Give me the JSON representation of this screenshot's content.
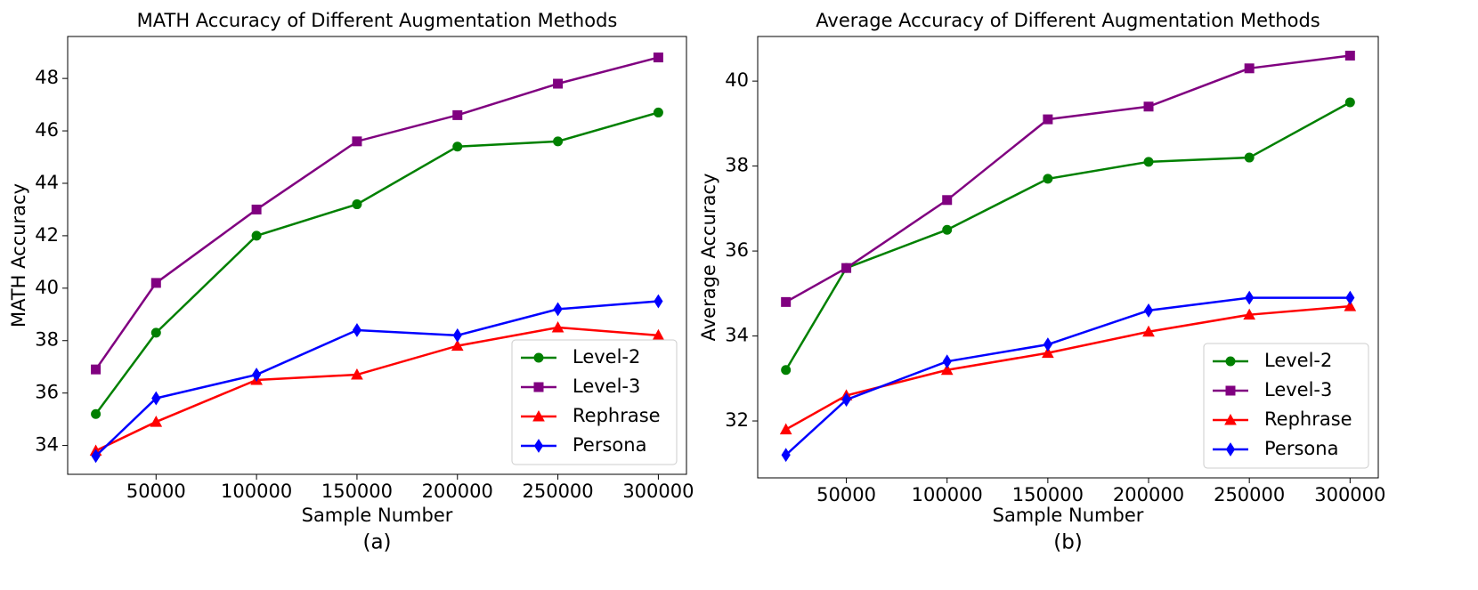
{
  "chart_data": [
    {
      "type": "line",
      "title": "MATH Accuracy of Different Augmentation Methods",
      "xlabel": "Sample Number",
      "ylabel": "MATH Accuracy",
      "caption": "(a)",
      "x": [
        20000,
        50000,
        100000,
        150000,
        200000,
        250000,
        300000
      ],
      "xlim": [
        6000,
        314000
      ],
      "xticks": [
        50000,
        100000,
        150000,
        200000,
        250000,
        300000
      ],
      "ylim": [
        32.9,
        49.6
      ],
      "yticks": [
        34,
        36,
        38,
        40,
        42,
        44,
        46,
        48
      ],
      "grid": false,
      "legend": "lower right",
      "series": [
        {
          "name": "Level-2",
          "color": "#008000",
          "marker": "circle",
          "values": [
            35.2,
            38.3,
            42.0,
            43.2,
            45.4,
            45.6,
            46.7
          ]
        },
        {
          "name": "Level-3",
          "color": "#800080",
          "marker": "square",
          "values": [
            36.9,
            40.2,
            43.0,
            45.6,
            46.6,
            47.8,
            48.8
          ]
        },
        {
          "name": "Rephrase",
          "color": "#ff0000",
          "marker": "triangle",
          "values": [
            33.8,
            34.9,
            36.5,
            36.7,
            37.8,
            38.5,
            38.2
          ]
        },
        {
          "name": "Persona",
          "color": "#0000ff",
          "marker": "diamond",
          "values": [
            33.6,
            35.8,
            36.7,
            38.4,
            38.2,
            39.2,
            39.5
          ]
        }
      ]
    },
    {
      "type": "line",
      "title": "Average Accuracy of Different Augmentation Methods",
      "xlabel": "Sample Number",
      "ylabel": "Average Accuracy",
      "caption": "(b)",
      "x": [
        20000,
        50000,
        100000,
        150000,
        200000,
        250000,
        300000
      ],
      "xlim": [
        6000,
        314000
      ],
      "xticks": [
        50000,
        100000,
        150000,
        200000,
        250000,
        300000
      ],
      "ylim": [
        30.66,
        41.05
      ],
      "yticks": [
        32,
        34,
        36,
        38,
        40
      ],
      "grid": false,
      "legend": "lower right",
      "series": [
        {
          "name": "Level-2",
          "color": "#008000",
          "marker": "circle",
          "values": [
            33.2,
            35.6,
            36.5,
            37.7,
            38.1,
            38.2,
            39.5
          ]
        },
        {
          "name": "Level-3",
          "color": "#800080",
          "marker": "square",
          "values": [
            34.8,
            35.6,
            37.2,
            39.1,
            39.4,
            40.3,
            40.6
          ]
        },
        {
          "name": "Rephrase",
          "color": "#ff0000",
          "marker": "triangle",
          "values": [
            31.8,
            32.6,
            33.2,
            33.6,
            34.1,
            34.5,
            34.7
          ]
        },
        {
          "name": "Persona",
          "color": "#0000ff",
          "marker": "diamond",
          "values": [
            31.2,
            32.5,
            33.4,
            33.8,
            34.6,
            34.9,
            34.9
          ]
        }
      ]
    }
  ]
}
